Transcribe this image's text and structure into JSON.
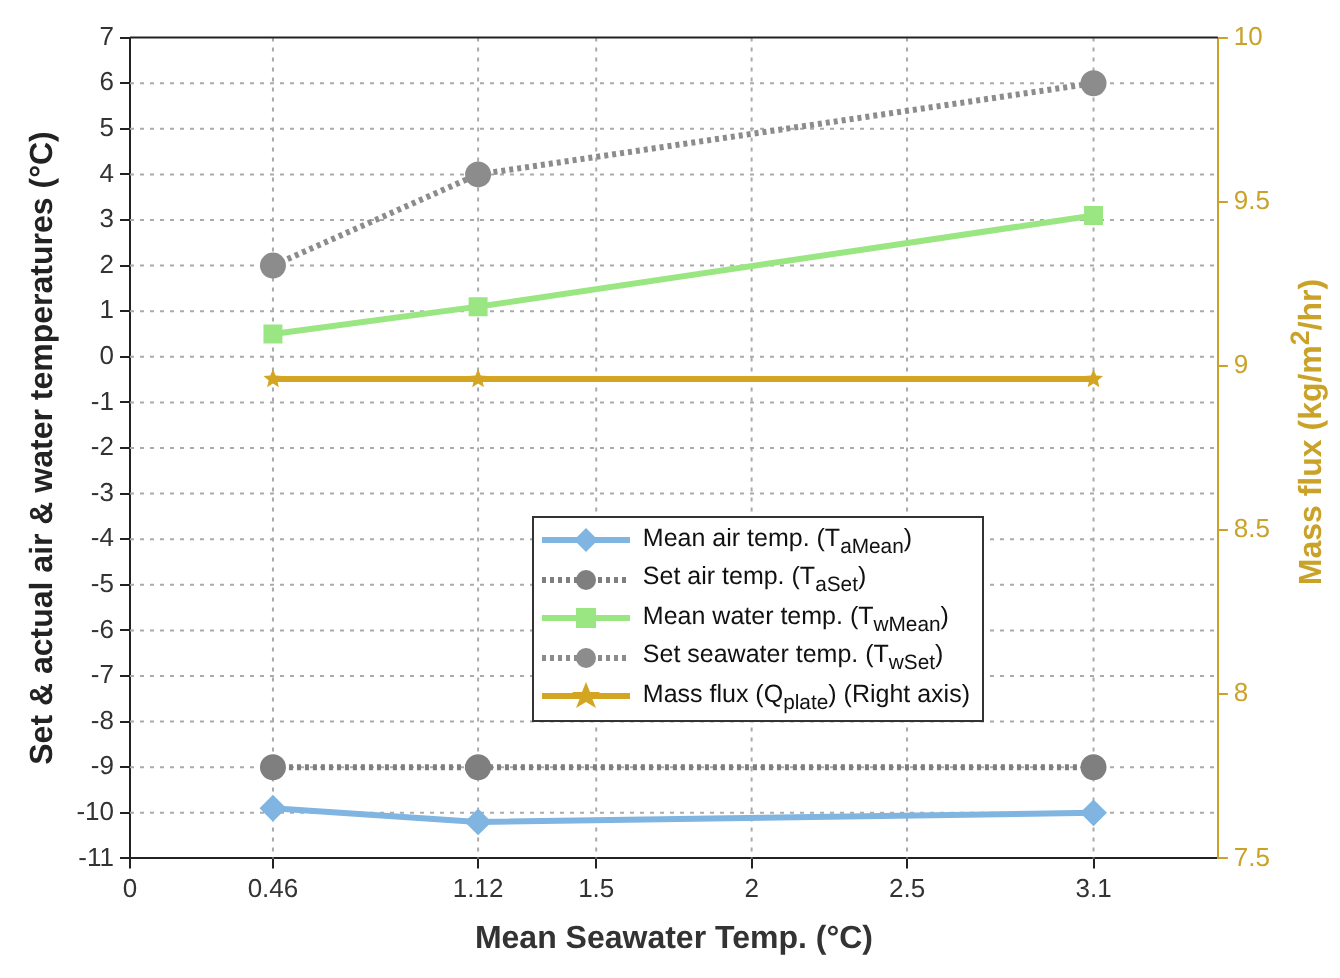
{
  "chart_data": {
    "type": "line",
    "xlabel": "Mean Seawater Temp. (°C)",
    "ylabel": "Set & actual air & water temperatures (°C)",
    "y2label": "Mass flux (kg/m$^{2}$/hr)",
    "x": [
      0.46,
      1.12,
      3.1
    ],
    "xlim": [
      0,
      3.5
    ],
    "xticks": [
      0,
      0.46,
      1.12,
      1.5,
      2,
      2.5,
      3.1
    ],
    "ylim": [
      -11,
      7
    ],
    "yticks": [
      -11,
      -10,
      -9,
      -8,
      -7,
      -6,
      -5,
      -4,
      -3,
      -2,
      -1,
      0,
      1,
      2,
      3,
      4,
      5,
      6,
      7
    ],
    "y2lim": [
      7.5,
      10
    ],
    "y2ticks": [
      7.5,
      8,
      8.5,
      9,
      9.5,
      10
    ],
    "grid": true,
    "legend": "bottom right",
    "series": [
      {
        "name": "Mean air temp. (T$_{aMean}$)",
        "color": "#7fb5e0",
        "values": [
          -9.9,
          -10.2,
          -10.0
        ],
        "marker": "diamond",
        "line_style": "solid"
      },
      {
        "name": "Set air temp.  (T$_{aSet}$)",
        "color": "#7f7f7f",
        "values": [
          -9,
          -9,
          -9
        ],
        "marker": "circle",
        "line_style": "dotted"
      },
      {
        "name": "Mean water temp. (T$_{wMean}$)",
        "color": "#99e682",
        "values": [
          0.5,
          1.1,
          3.1
        ],
        "marker": "square",
        "line_style": "solid"
      },
      {
        "name": "Set seawater temp. (T$_{wSet}$)",
        "color": "#8c8c8c",
        "values": [
          2,
          4,
          6
        ],
        "marker": "circle",
        "line_style": "dotted"
      },
      {
        "name": "Mass flux (Q$_{plate}$) (Right axis)",
        "color": "#d4a520",
        "values": [
          8.96,
          8.96,
          8.96
        ],
        "marker": "star",
        "line_style": "solid",
        "axis": "y2"
      }
    ]
  }
}
